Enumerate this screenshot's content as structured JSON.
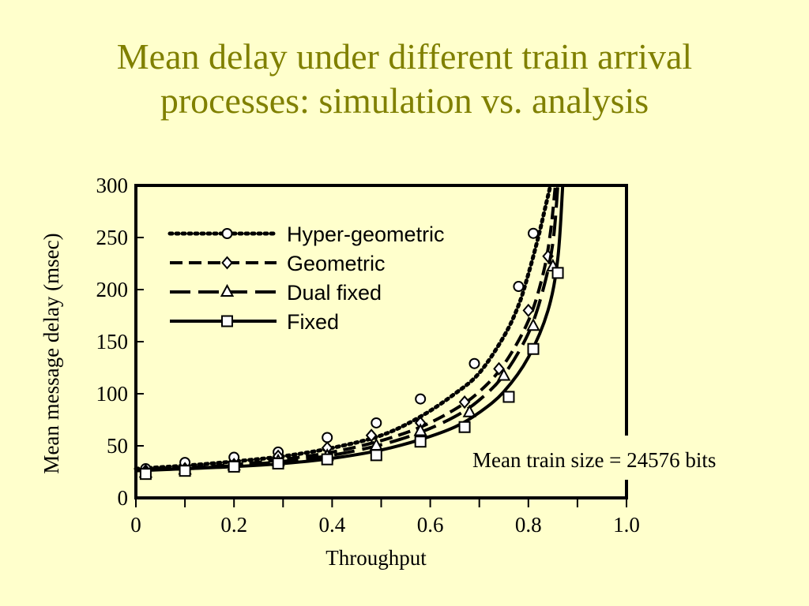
{
  "slide": {
    "title_line1": "Mean delay under different train arrival",
    "title_line2": "processes: simulation vs. analysis",
    "colors": {
      "background": "#ffffcc",
      "title": "#808000"
    }
  },
  "chart_data": {
    "type": "line",
    "xlabel": "Throughput",
    "ylabel": "Mean message delay (msec)",
    "xlim": [
      0,
      1.0
    ],
    "ylim": [
      0,
      300
    ],
    "x_ticks": [
      0,
      0.2,
      0.4,
      0.6,
      0.8,
      1.0
    ],
    "x_tick_labels": [
      "0",
      "0.2",
      "0.4",
      "0.6",
      "0.8",
      "1.0"
    ],
    "y_ticks": [
      0,
      50,
      100,
      150,
      200,
      250,
      300
    ],
    "y_tick_labels": [
      "0",
      "50",
      "100",
      "150",
      "200",
      "250",
      "300"
    ],
    "grid": false,
    "legend_position": "top-left",
    "annotation": "Mean train size = 24576 bits",
    "series": [
      {
        "name": "Hyper-geometric",
        "line_style": "dotted",
        "marker": "circle",
        "curve": [
          [
            0,
            28
          ],
          [
            0.1,
            31
          ],
          [
            0.2,
            35
          ],
          [
            0.3,
            40
          ],
          [
            0.4,
            48
          ],
          [
            0.5,
            60
          ],
          [
            0.58,
            78
          ],
          [
            0.65,
            100
          ],
          [
            0.7,
            120
          ],
          [
            0.75,
            155
          ],
          [
            0.78,
            185
          ],
          [
            0.8,
            215
          ],
          [
            0.82,
            250
          ],
          [
            0.835,
            280
          ],
          [
            0.845,
            300
          ]
        ],
        "points": [
          [
            0.02,
            28
          ],
          [
            0.1,
            34
          ],
          [
            0.2,
            39
          ],
          [
            0.29,
            44
          ],
          [
            0.39,
            58
          ],
          [
            0.49,
            72
          ],
          [
            0.58,
            95
          ],
          [
            0.69,
            129
          ],
          [
            0.78,
            203
          ],
          [
            0.81,
            254
          ]
        ]
      },
      {
        "name": "Geometric",
        "line_style": "dashed",
        "marker": "diamond",
        "curve": [
          [
            0,
            27
          ],
          [
            0.1,
            29
          ],
          [
            0.2,
            32
          ],
          [
            0.3,
            37
          ],
          [
            0.4,
            44
          ],
          [
            0.5,
            55
          ],
          [
            0.58,
            68
          ],
          [
            0.65,
            85
          ],
          [
            0.7,
            102
          ],
          [
            0.75,
            128
          ],
          [
            0.8,
            170
          ],
          [
            0.83,
            215
          ],
          [
            0.845,
            255
          ],
          [
            0.855,
            300
          ]
        ],
        "points": [
          [
            0.02,
            26
          ],
          [
            0.1,
            28
          ],
          [
            0.2,
            32
          ],
          [
            0.29,
            40
          ],
          [
            0.39,
            48
          ],
          [
            0.48,
            60
          ],
          [
            0.58,
            72
          ],
          [
            0.67,
            92
          ],
          [
            0.74,
            124
          ],
          [
            0.8,
            180
          ],
          [
            0.84,
            232
          ]
        ]
      },
      {
        "name": "Dual fixed",
        "line_style": "long-dashed",
        "marker": "triangle",
        "curve": [
          [
            0,
            27
          ],
          [
            0.1,
            28
          ],
          [
            0.2,
            31
          ],
          [
            0.3,
            35
          ],
          [
            0.4,
            41
          ],
          [
            0.5,
            51
          ],
          [
            0.58,
            63
          ],
          [
            0.65,
            78
          ],
          [
            0.7,
            94
          ],
          [
            0.75,
            118
          ],
          [
            0.8,
            158
          ],
          [
            0.83,
            200
          ],
          [
            0.85,
            245
          ],
          [
            0.86,
            300
          ]
        ],
        "points": [
          [
            0.02,
            24
          ],
          [
            0.1,
            27
          ],
          [
            0.2,
            31
          ],
          [
            0.29,
            35
          ],
          [
            0.39,
            40
          ],
          [
            0.49,
            50
          ],
          [
            0.58,
            64
          ],
          [
            0.68,
            82
          ],
          [
            0.75,
            117
          ],
          [
            0.81,
            165
          ],
          [
            0.85,
            222
          ]
        ]
      },
      {
        "name": "Fixed",
        "line_style": "solid",
        "marker": "square",
        "curve": [
          [
            0,
            26
          ],
          [
            0.1,
            28
          ],
          [
            0.2,
            30
          ],
          [
            0.3,
            33
          ],
          [
            0.4,
            38
          ],
          [
            0.5,
            46
          ],
          [
            0.58,
            56
          ],
          [
            0.65,
            68
          ],
          [
            0.7,
            82
          ],
          [
            0.75,
            102
          ],
          [
            0.8,
            135
          ],
          [
            0.84,
            180
          ],
          [
            0.86,
            230
          ],
          [
            0.87,
            300
          ]
        ],
        "points": [
          [
            0.02,
            23
          ],
          [
            0.1,
            26
          ],
          [
            0.2,
            30
          ],
          [
            0.29,
            33
          ],
          [
            0.39,
            37
          ],
          [
            0.49,
            41
          ],
          [
            0.58,
            54
          ],
          [
            0.67,
            68
          ],
          [
            0.76,
            97
          ],
          [
            0.81,
            143
          ],
          [
            0.86,
            216
          ]
        ]
      }
    ]
  }
}
